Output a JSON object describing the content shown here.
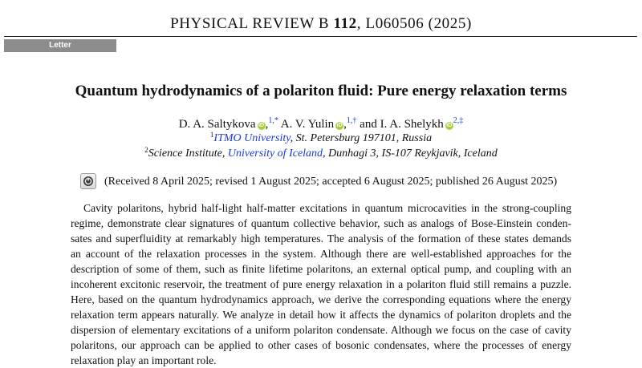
{
  "header": {
    "journal": "PHYSICAL REVIEW B",
    "volume": "112",
    "article": ", L060506 (2025)"
  },
  "section_tab": "Letter",
  "title": "Quantum hydrodynamics of a polariton fluid: Pure energy relaxation terms",
  "authors": [
    {
      "name": "D. A. Saltykova",
      "marks": "1,*"
    },
    {
      "name": "A. V. Yulin",
      "marks": "1,†"
    },
    {
      "name": "I. A. Shelykh",
      "marks": "2,‡"
    }
  ],
  "author_separator_1": ",",
  "author_separator_2": "and",
  "orcid_glyph": "iD",
  "affiliations": [
    {
      "num": "1",
      "org": "ITMO University",
      "rest": ", St. Petersburg 197101, Russia"
    },
    {
      "num": "2",
      "pre": "Science Institute, ",
      "org": "University of Iceland",
      "rest": ", Dunhagi 3, IS-107 Reykjavik, Iceland"
    }
  ],
  "dates": "(Received 8 April 2025; revised 1 August 2025; accepted 6 August 2025; published 26 August 2025)",
  "check_updates_icon": "check-for-updates-icon",
  "colors": {
    "link": "#1a3bd6",
    "tab_bg": "#8c8c8c",
    "orcid": "#a6ce39"
  },
  "abstract_lines": [
    "Cavity polaritons, hybrid half-light half-matter excitations in quantum microcavities in the strong-coupling",
    "regime, demonstrate clear signatures of quantum collective behavior, such as analogs of Bose-Einstein conden-",
    "sates and superfluidity at remarkably high temperatures. The analysis of the formation of these states demands",
    "an account of the relaxation processes in the system. Although there are well-established approaches for the",
    "description of some of them, such as finite lifetime polaritons, an external optical pump, and coupling with an",
    "incoherent excitonic reservoir, the treatment of pure energy relaxation in a polariton fluid still remains a puzzle.",
    "Here, based on the quantum hydrodynamics approach, we derive the corresponding equations where the energy",
    "relaxation term appears naturally. We analyze in detail how it affects the dynamics of polariton droplets and the",
    "dispersion of elementary excitations of a uniform polariton condensate. Although we focus on the case of cavity",
    "polaritons, our approach can be applied to other cases of bosonic condensates, where the processes of energy",
    "relaxation play an important role."
  ]
}
